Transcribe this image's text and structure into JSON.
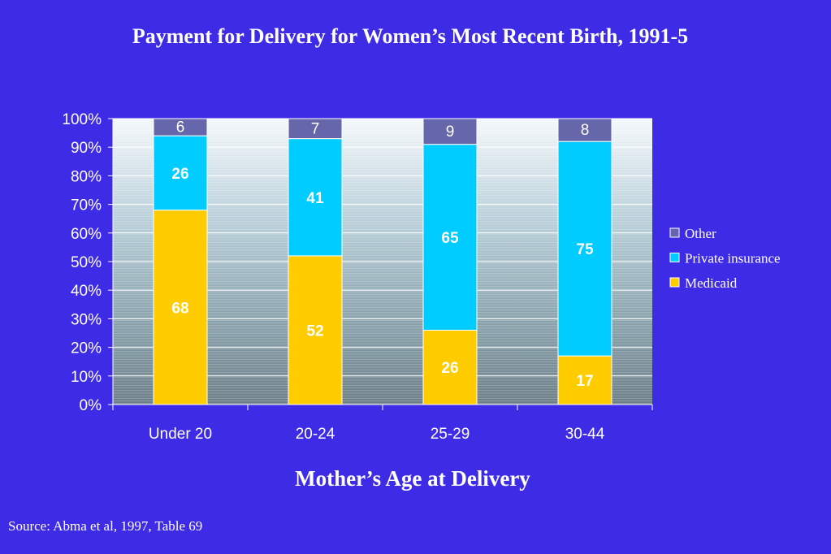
{
  "chart_data": {
    "type": "bar",
    "stacked": true,
    "title": "Payment for Delivery for Women’s Most Recent Birth, 1991-5",
    "xlabel": "Mother’s Age at Delivery",
    "ylabel": "",
    "ylim": [
      0,
      100
    ],
    "yticks": [
      "0%",
      "10%",
      "20%",
      "30%",
      "40%",
      "50%",
      "60%",
      "70%",
      "80%",
      "90%",
      "100%"
    ],
    "categories": [
      "Under 20",
      "20-24",
      "25-29",
      "30-44"
    ],
    "series": [
      {
        "name": "Medicaid",
        "values": [
          68,
          52,
          26,
          17
        ],
        "color": "#ffcc00"
      },
      {
        "name": "Private insurance",
        "values": [
          26,
          41,
          65,
          75
        ],
        "color": "#00ccff"
      },
      {
        "name": "Other",
        "values": [
          6,
          7,
          9,
          8
        ],
        "color": "#6666aa"
      }
    ],
    "legend": [
      "Other",
      "Private insurance",
      "Medicaid"
    ],
    "legend_position": "right",
    "grid": true
  },
  "source": "Source: Abma et al, 1997, Table 69"
}
